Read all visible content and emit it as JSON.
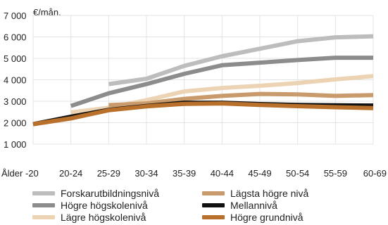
{
  "chart_data": {
    "type": "line",
    "unit_label": "€/mån.",
    "categories": [
      "Ålder -20",
      "20-24",
      "25-29",
      "30-34",
      "35-39",
      "40-44",
      "45-49",
      "50-54",
      "55-59",
      "60-69"
    ],
    "ylim": [
      1000,
      7000
    ],
    "yticks": [
      "1 000",
      "2 000",
      "3 000",
      "4 000",
      "5 000",
      "6 000",
      "7 000"
    ],
    "ytick_values": [
      1000,
      2000,
      3000,
      4000,
      5000,
      6000,
      7000
    ],
    "grid": true,
    "legend_position": "bottom",
    "series": [
      {
        "name": "Forskarutbildningsnivå",
        "color": "#bdbdbd",
        "values": [
          null,
          null,
          3800,
          4050,
          4650,
          5100,
          5450,
          5800,
          5980,
          6030
        ]
      },
      {
        "name": "Högre högskolenivå",
        "color": "#8c8c8c",
        "values": [
          null,
          2780,
          3370,
          3800,
          4280,
          4680,
          4800,
          4920,
          5030,
          5030
        ]
      },
      {
        "name": "Lägre högskolenivå",
        "color": "#ecd3b3",
        "values": [
          null,
          2480,
          2700,
          3050,
          3460,
          3620,
          3720,
          3850,
          4020,
          4170
        ]
      },
      {
        "name": "Lägsta högre nivå",
        "color": "#c99a6b",
        "values": [
          null,
          null,
          2820,
          2900,
          3110,
          3250,
          3340,
          3320,
          3250,
          3290
        ]
      },
      {
        "name": "Mellannivå",
        "color": "#111111",
        "values": [
          1930,
          2280,
          2600,
          2780,
          2930,
          2930,
          2870,
          2830,
          2810,
          2800
        ]
      },
      {
        "name": "Högre grundnivå",
        "color": "#b8702a",
        "values": [
          1930,
          2200,
          2580,
          2760,
          2880,
          2900,
          2830,
          2770,
          2720,
          2680
        ]
      }
    ]
  }
}
